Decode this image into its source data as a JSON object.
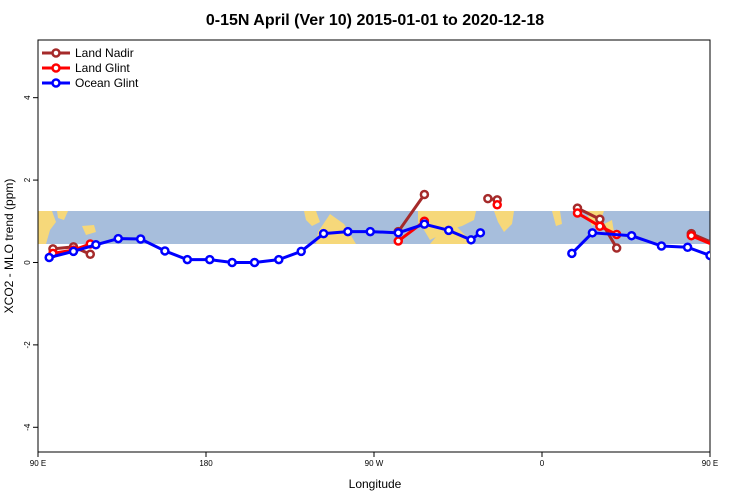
{
  "chart_data": {
    "type": "line",
    "title": "0-15N April (Ver 10)   2015-01-01 to 2020-12-18",
    "xlabel": "Longitude",
    "ylabel": "XCO2 - MLO trend (ppm)",
    "xlim": [
      90,
      450
    ],
    "ylim": [
      -4.6,
      5.4
    ],
    "x_ticks": [
      {
        "value": 90,
        "label": "90 E"
      },
      {
        "value": 180,
        "label": "180"
      },
      {
        "value": 270,
        "label": "90 W"
      },
      {
        "value": 360,
        "label": "0"
      },
      {
        "value": 450,
        "label": "90 E"
      },
      {
        "value": 540,
        "label": "180"
      }
    ],
    "y_ticks": [
      {
        "value": -4,
        "label": "-4"
      },
      {
        "value": -2,
        "label": "-2"
      },
      {
        "value": 0,
        "label": "0"
      },
      {
        "value": 2,
        "label": "2"
      },
      {
        "value": 4,
        "label": "4"
      }
    ],
    "legend_position": "top-left",
    "grid": false,
    "background_map": {
      "band_y": [
        0.45,
        1.25
      ],
      "ocean_color": "#a7bedc",
      "land_color": "#f6d87a"
    },
    "series": [
      {
        "name": "Land Nadir",
        "color": "#a52a2a",
        "segments": [
          {
            "x": [
              98,
              109,
              118
            ],
            "y": [
              0.33,
              0.38,
              0.2
            ]
          },
          {
            "x": [
              283,
              297
            ],
            "y": [
              0.75,
              1.65
            ]
          },
          {
            "x": [
              331,
              336
            ],
            "y": [
              1.55,
              1.52
            ]
          },
          {
            "x": [
              379,
              391,
              400
            ],
            "y": [
              1.32,
              1.05,
              0.35
            ]
          },
          {
            "x": [
              440,
              459,
              480,
              484
            ],
            "y": [
              0.7,
              0.33,
              0.38,
              0.2
            ]
          }
        ]
      },
      {
        "name": "Land Glint",
        "color": "#ff0000",
        "segments": [
          {
            "x": [
              98,
              109,
              118
            ],
            "y": [
              0.22,
              0.3,
              0.45
            ]
          },
          {
            "x": [
              283,
              297
            ],
            "y": [
              0.52,
              1.0
            ]
          },
          {
            "x": [
              336
            ],
            "y": [
              1.4
            ]
          },
          {
            "x": [
              379,
              391,
              400
            ],
            "y": [
              1.2,
              0.88,
              0.68
            ]
          },
          {
            "x": [
              440,
              461,
              484
            ],
            "y": [
              0.65,
              0.25,
              0.42
            ]
          }
        ]
      },
      {
        "name": "Ocean Glint",
        "color": "#0000ff",
        "segments": [
          {
            "x": [
              96,
              109,
              121,
              133,
              145,
              158,
              170,
              182,
              194,
              206,
              219,
              231,
              243,
              256,
              268,
              283,
              297,
              310,
              322,
              327
            ],
            "y": [
              0.12,
              0.27,
              0.43,
              0.58,
              0.57,
              0.28,
              0.07,
              0.07,
              0.0,
              0.0,
              0.07,
              0.27,
              0.7,
              0.75,
              0.75,
              0.72,
              0.93,
              0.78,
              0.55,
              0.72
            ]
          },
          {
            "x": [
              376,
              387,
              408,
              424,
              438,
              450,
              462,
              474,
              487,
              500,
              512,
              525
            ],
            "y": [
              0.22,
              0.72,
              0.65,
              0.4,
              0.37,
              0.17,
              0.1,
              0.27,
              0.45,
              0.6,
              0.57,
              0.28
            ]
          }
        ]
      }
    ]
  }
}
